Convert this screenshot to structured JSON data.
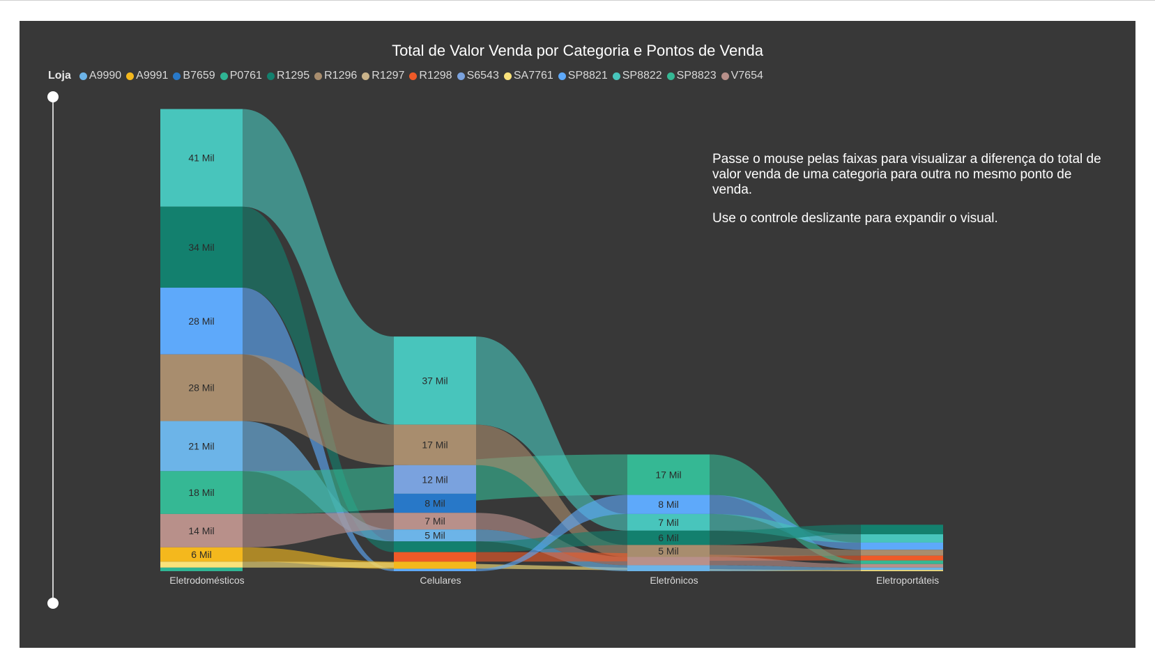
{
  "chart_data": {
    "type": "sankey",
    "title": "Total de Valor Venda por Categoria e Pontos de Venda",
    "legend_title": "Loja",
    "legend_placement": "top-left",
    "stores": [
      {
        "name": "A9990",
        "color": "#6CB4E8"
      },
      {
        "name": "A9991",
        "color": "#F4B81D"
      },
      {
        "name": "B7659",
        "color": "#2878C8"
      },
      {
        "name": "P0761",
        "color": "#2FB594"
      },
      {
        "name": "R1295",
        "color": "#13806E"
      },
      {
        "name": "R1296",
        "color": "#A88D6E"
      },
      {
        "name": "R1297",
        "color": "#C9B38A"
      },
      {
        "name": "R1298",
        "color": "#EF5A28"
      },
      {
        "name": "S6543",
        "color": "#7AA2DE"
      },
      {
        "name": "SA7761",
        "color": "#FAE27B"
      },
      {
        "name": "SP8821",
        "color": "#5EA9FA"
      },
      {
        "name": "SP8822",
        "color": "#48C5BC"
      },
      {
        "name": "SP8823",
        "color": "#35B894"
      },
      {
        "name": "V7654",
        "color": "#B8908A"
      }
    ],
    "categories": [
      "Eletrodomésticos",
      "Celulares",
      "Eletrônicos",
      "Eletroportáteis"
    ],
    "segments": [
      [
        {
          "store": "SP8822",
          "value": 41,
          "label": "41 Mil"
        },
        {
          "store": "R1295",
          "value": 34,
          "label": "34 Mil"
        },
        {
          "store": "SP8821",
          "value": 28,
          "label": "28 Mil"
        },
        {
          "store": "R1296",
          "value": 28,
          "label": "28 Mil"
        },
        {
          "store": "A9990",
          "value": 21,
          "label": "21 Mil"
        },
        {
          "store": "SP8823",
          "value": 18,
          "label": "18 Mil"
        },
        {
          "store": "V7654",
          "value": 14,
          "label": "14 Mil"
        },
        {
          "store": "A9991",
          "value": 6,
          "label": "6 Mil"
        },
        {
          "store": "SA7761",
          "value": 2.5,
          "label": ""
        },
        {
          "store": "P0761",
          "value": 1.5,
          "label": ""
        }
      ],
      [
        {
          "store": "SP8822",
          "value": 37,
          "label": "37 Mil"
        },
        {
          "store": "R1296",
          "value": 17,
          "label": "17 Mil"
        },
        {
          "store": "S6543",
          "value": 12,
          "label": "12 Mil"
        },
        {
          "store": "B7659",
          "value": 8,
          "label": "8 Mil"
        },
        {
          "store": "V7654",
          "value": 7,
          "label": "7 Mil"
        },
        {
          "store": "A9990",
          "value": 5,
          "label": "5 Mil"
        },
        {
          "store": "R1295",
          "value": 4.5,
          "label": ""
        },
        {
          "store": "R1298",
          "value": 4,
          "label": ""
        },
        {
          "store": "A9991",
          "value": 3,
          "label": ""
        },
        {
          "store": "SP8821",
          "value": 1,
          "label": ""
        }
      ],
      [
        {
          "store": "SP8823",
          "value": 17,
          "label": "17 Mil"
        },
        {
          "store": "SP8821",
          "value": 8,
          "label": "8 Mil"
        },
        {
          "store": "SP8822",
          "value": 7,
          "label": "7 Mil"
        },
        {
          "store": "R1295",
          "value": 6,
          "label": "6 Mil"
        },
        {
          "store": "R1296",
          "value": 5,
          "label": "5 Mil"
        },
        {
          "store": "V7654",
          "value": 3.5,
          "label": ""
        },
        {
          "store": "A9990",
          "value": 2.5,
          "label": ""
        }
      ],
      [
        {
          "store": "R1295",
          "value": 4,
          "label": ""
        },
        {
          "store": "SP8822",
          "value": 3.5,
          "label": ""
        },
        {
          "store": "SP8821",
          "value": 3,
          "label": ""
        },
        {
          "store": "R1296",
          "value": 2.5,
          "label": ""
        },
        {
          "store": "R1298",
          "value": 2,
          "label": ""
        },
        {
          "store": "SP8823",
          "value": 1.5,
          "label": ""
        },
        {
          "store": "V7654",
          "value": 1.5,
          "label": ""
        },
        {
          "store": "A9990",
          "value": 1,
          "label": ""
        },
        {
          "store": "SA7761",
          "value": 0.5,
          "label": ""
        }
      ]
    ]
  },
  "info": {
    "line1": "Passe o mouse pelas faixas para visualizar a diferença do total de valor venda de uma categoria para outra no mesmo ponto de venda.",
    "line2": "Use o controle deslizante para expandir o visual."
  }
}
